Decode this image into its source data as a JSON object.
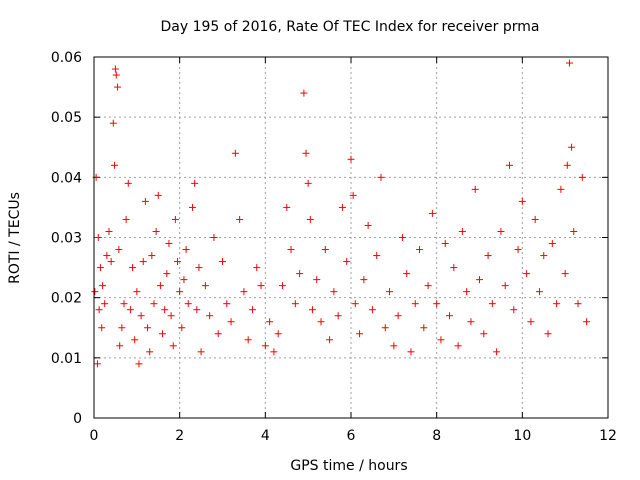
{
  "chart_data": {
    "type": "scatter",
    "title": "Day 195 of 2016, Rate Of TEC Index for receiver prma",
    "xlabel": "GPS time / hours",
    "ylabel": "ROTI / TECUs",
    "xlim": [
      0,
      12
    ],
    "ylim": [
      0,
      0.06
    ],
    "xticks": [
      0,
      2,
      4,
      6,
      8,
      10,
      12
    ],
    "xtick_labels": [
      "0",
      "2",
      "4",
      "6",
      "8",
      "10",
      "12"
    ],
    "yticks": [
      0,
      0.01,
      0.02,
      0.03,
      0.04,
      0.05,
      0.06
    ],
    "ytick_labels": [
      "0",
      "0.01",
      "0.02",
      "0.03",
      "0.04",
      "0.05",
      "0.06"
    ],
    "grid": true,
    "marker": "plus",
    "color": "#ff0000",
    "series": [
      {
        "name": "ROTI",
        "x": [
          0.02,
          0.05,
          0.08,
          0.1,
          0.12,
          0.15,
          0.18,
          0.2,
          0.25,
          0.3,
          0.35,
          0.4,
          0.45,
          0.48,
          0.5,
          0.52,
          0.55,
          0.58,
          0.6,
          0.65,
          0.7,
          0.75,
          0.8,
          0.85,
          0.9,
          0.95,
          1.0,
          1.05,
          1.1,
          1.15,
          1.2,
          1.25,
          1.3,
          1.35,
          1.4,
          1.45,
          1.5,
          1.55,
          1.6,
          1.65,
          1.7,
          1.75,
          1.8,
          1.85,
          1.9,
          1.95,
          2.0,
          2.05,
          2.1,
          2.15,
          2.2,
          2.3,
          2.35,
          2.4,
          2.45,
          2.5,
          2.6,
          2.7,
          2.8,
          2.9,
          3.0,
          3.1,
          3.2,
          3.3,
          3.4,
          3.5,
          3.6,
          3.7,
          3.8,
          3.9,
          4.0,
          4.1,
          4.2,
          4.3,
          4.4,
          4.5,
          4.6,
          4.7,
          4.8,
          4.9,
          4.95,
          5.0,
          5.05,
          5.1,
          5.2,
          5.3,
          5.4,
          5.5,
          5.6,
          5.7,
          5.8,
          5.9,
          6.0,
          6.05,
          6.1,
          6.2,
          6.3,
          6.4,
          6.5,
          6.6,
          6.7,
          6.8,
          6.9,
          7.0,
          7.1,
          7.2,
          7.3,
          7.4,
          7.5,
          7.6,
          7.7,
          7.8,
          7.9,
          8.0,
          8.1,
          8.2,
          8.3,
          8.4,
          8.5,
          8.6,
          8.7,
          8.8,
          8.9,
          9.0,
          9.1,
          9.2,
          9.3,
          9.4,
          9.5,
          9.6,
          9.7,
          9.8,
          9.9,
          10.0,
          10.1,
          10.2,
          10.3,
          10.4,
          10.5,
          10.6,
          10.7,
          10.8,
          10.9,
          11.0,
          11.05,
          11.1,
          11.15,
          11.2,
          11.3,
          11.4,
          11.5
        ],
        "y": [
          0.021,
          0.04,
          0.009,
          0.03,
          0.018,
          0.025,
          0.015,
          0.022,
          0.019,
          0.027,
          0.031,
          0.026,
          0.049,
          0.042,
          0.058,
          0.057,
          0.055,
          0.028,
          0.012,
          0.015,
          0.019,
          0.033,
          0.039,
          0.018,
          0.025,
          0.013,
          0.021,
          0.009,
          0.017,
          0.026,
          0.036,
          0.015,
          0.011,
          0.027,
          0.019,
          0.031,
          0.037,
          0.022,
          0.014,
          0.018,
          0.024,
          0.029,
          0.017,
          0.012,
          0.033,
          0.026,
          0.021,
          0.015,
          0.023,
          0.028,
          0.019,
          0.035,
          0.039,
          0.018,
          0.025,
          0.011,
          0.022,
          0.017,
          0.03,
          0.014,
          0.026,
          0.019,
          0.016,
          0.044,
          0.033,
          0.021,
          0.013,
          0.018,
          0.025,
          0.022,
          0.012,
          0.016,
          0.011,
          0.014,
          0.022,
          0.035,
          0.028,
          0.019,
          0.024,
          0.054,
          0.044,
          0.039,
          0.033,
          0.018,
          0.023,
          0.016,
          0.028,
          0.013,
          0.021,
          0.017,
          0.035,
          0.026,
          0.043,
          0.037,
          0.019,
          0.014,
          0.023,
          0.032,
          0.018,
          0.027,
          0.04,
          0.015,
          0.021,
          0.012,
          0.017,
          0.03,
          0.024,
          0.011,
          0.019,
          0.028,
          0.015,
          0.022,
          0.034,
          0.019,
          0.013,
          0.029,
          0.017,
          0.025,
          0.012,
          0.031,
          0.021,
          0.016,
          0.038,
          0.023,
          0.014,
          0.027,
          0.019,
          0.011,
          0.031,
          0.022,
          0.042,
          0.018,
          0.028,
          0.036,
          0.024,
          0.016,
          0.033,
          0.021,
          0.027,
          0.014,
          0.029,
          0.019,
          0.038,
          0.024,
          0.042,
          0.059,
          0.045,
          0.031,
          0.019,
          0.04,
          0.016
        ]
      }
    ]
  }
}
